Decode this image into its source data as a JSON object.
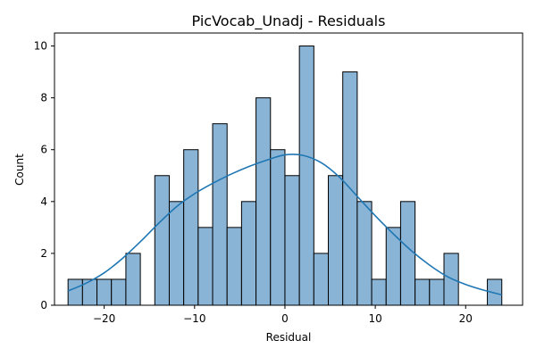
{
  "chart_data": {
    "type": "bar",
    "title": "PicVocab_Unadj - Residuals",
    "xlabel": "Residual",
    "ylabel": "Count",
    "xlim": [
      -25.5,
      26.3
    ],
    "ylim": [
      0,
      10.5
    ],
    "xticks": [
      -20,
      -10,
      0,
      10,
      20
    ],
    "xtick_labels": [
      "−20",
      "−10",
      "0",
      "10",
      "20"
    ],
    "yticks": [
      0,
      2,
      4,
      6,
      8,
      10
    ],
    "ytick_labels": [
      "0",
      "2",
      "4",
      "6",
      "8",
      "10"
    ],
    "bin_edges": [
      -24.0,
      -22.4,
      -20.8,
      -19.2,
      -17.6,
      -16.0,
      -14.4,
      -12.8,
      -11.2,
      -9.6,
      -8.0,
      -6.4,
      -4.8,
      -3.2,
      -1.6,
      0.0,
      1.6,
      3.2,
      4.8,
      6.4,
      8.0,
      9.6,
      11.2,
      12.8,
      14.4,
      16.0,
      17.6,
      19.2,
      20.8,
      22.4,
      24.0
    ],
    "counts": [
      1,
      1,
      1,
      1,
      2,
      0,
      5,
      4,
      6,
      3,
      7,
      3,
      4,
      8,
      6,
      5,
      10,
      2,
      5,
      9,
      4,
      1,
      3,
      4,
      1,
      1,
      2,
      0,
      0,
      1
    ],
    "kde": {
      "x": [
        -24,
        -22,
        -20,
        -18,
        -16,
        -14,
        -12,
        -10,
        -8,
        -6,
        -4,
        -2,
        0,
        2,
        4,
        6,
        8,
        10,
        12,
        14,
        16,
        18,
        20,
        22,
        24
      ],
      "y": [
        0.55,
        0.85,
        1.25,
        1.8,
        2.45,
        3.15,
        3.8,
        4.3,
        4.7,
        5.05,
        5.35,
        5.6,
        5.8,
        5.78,
        5.5,
        4.95,
        4.2,
        3.45,
        2.75,
        2.1,
        1.55,
        1.1,
        0.8,
        0.58,
        0.4
      ]
    },
    "grid": false,
    "legend": false,
    "colors": {
      "bar_fill": "#8ab4d6",
      "bar_edge": "#000000",
      "kde_line": "#1f77b4"
    }
  }
}
